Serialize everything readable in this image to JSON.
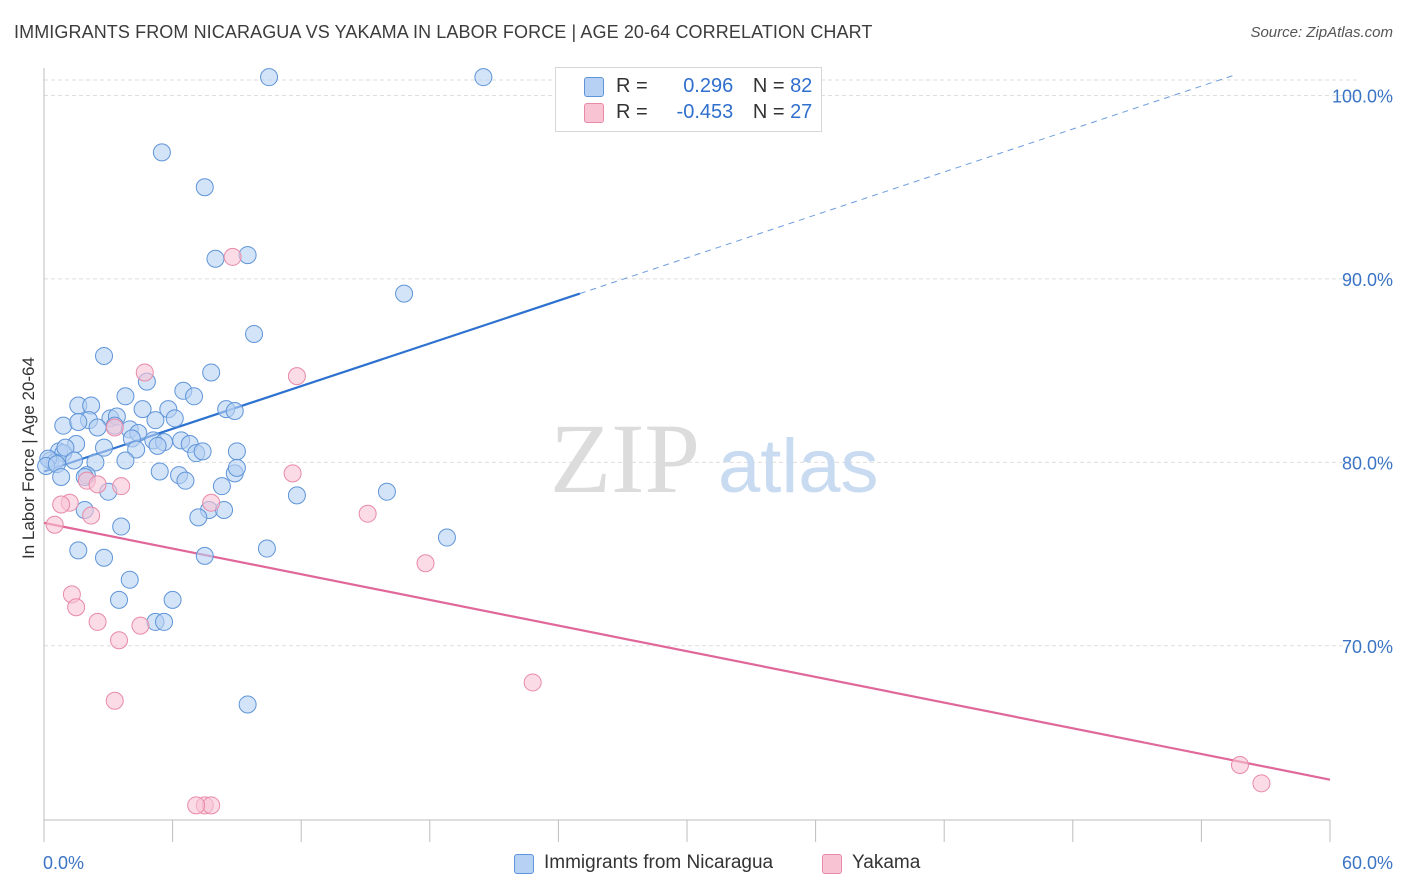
{
  "title": "IMMIGRANTS FROM NICARAGUA VS YAKAMA IN LABOR FORCE | AGE 20-64 CORRELATION CHART",
  "source": "Source: ZipAtlas.com",
  "watermark": {
    "zip": "ZIP",
    "atlas": "atlas"
  },
  "legend": {
    "series1": {
      "r_label": "R =",
      "r_value": "0.296",
      "n_label": "N =",
      "n_value": "82"
    },
    "series2": {
      "r_label": "R =",
      "r_value": "-0.453",
      "n_label": "N =",
      "n_value": "27"
    }
  },
  "colors": {
    "blue_fill": "#b6d1f3",
    "blue_stroke": "#5f95d8",
    "blue_line": "#2e72d0",
    "pink_fill": "#f8c3d3",
    "pink_stroke": "#e88aa8",
    "pink_line": "#e0679a",
    "tick_text": "#3b74c4",
    "grid": "#dedede"
  },
  "chart_data": {
    "type": "scatter",
    "title": "IMMIGRANTS FROM NICARAGUA VS YAKAMA IN LABOR FORCE | AGE 20-64 CORRELATION CHART",
    "xlabel": "",
    "ylabel": "In Labor Force | Age 20-64",
    "xlim": [
      0,
      60
    ],
    "ylim": [
      60.5,
      101.5
    ],
    "x_tick_labels": [
      "0.0%",
      "60.0%"
    ],
    "y_ticks": [
      70,
      80,
      90,
      100
    ],
    "y_tick_labels": [
      "70.0%",
      "80.0%",
      "90.0%",
      "100.0%"
    ],
    "grid": true,
    "legend_position": "top-center",
    "series": [
      {
        "name": "Immigrants from Nicaragua",
        "color": "#5f95d8",
        "points": [
          [
            10.5,
            101
          ],
          [
            20.5,
            101
          ],
          [
            5.5,
            96.9
          ],
          [
            7.5,
            95
          ],
          [
            8,
            91.1
          ],
          [
            9.5,
            91.3
          ],
          [
            16.8,
            89.2
          ],
          [
            9.8,
            87
          ],
          [
            2.8,
            85.8
          ],
          [
            7.8,
            84.9
          ],
          [
            4.8,
            84.4
          ],
          [
            6.5,
            83.9
          ],
          [
            3.8,
            83.6
          ],
          [
            7,
            83.6
          ],
          [
            1.6,
            83.1
          ],
          [
            2.2,
            83.1
          ],
          [
            4.6,
            82.9
          ],
          [
            5.8,
            82.9
          ],
          [
            3.1,
            82.4
          ],
          [
            3.4,
            82.5
          ],
          [
            5.2,
            82.3
          ],
          [
            2.1,
            82.3
          ],
          [
            0.9,
            82
          ],
          [
            1.6,
            82.2
          ],
          [
            3.3,
            82
          ],
          [
            2.5,
            81.9
          ],
          [
            8.5,
            82.9
          ],
          [
            8.9,
            82.8
          ],
          [
            6.1,
            82.4
          ],
          [
            4,
            81.8
          ],
          [
            4.4,
            81.6
          ],
          [
            4.1,
            81.3
          ],
          [
            5.1,
            81.2
          ],
          [
            5.6,
            81.1
          ],
          [
            6.4,
            81.2
          ],
          [
            1.5,
            81
          ],
          [
            2.8,
            80.8
          ],
          [
            4.3,
            80.7
          ],
          [
            5.3,
            80.9
          ],
          [
            6.8,
            81
          ],
          [
            0.7,
            80.6
          ],
          [
            0.9,
            80.5
          ],
          [
            1,
            80.8
          ],
          [
            0.3,
            80.1
          ],
          [
            0.5,
            80
          ],
          [
            0.2,
            80.2
          ],
          [
            0.1,
            79.8
          ],
          [
            0.6,
            79.9
          ],
          [
            1.4,
            80.1
          ],
          [
            2.4,
            80
          ],
          [
            7.1,
            80.5
          ],
          [
            7.4,
            80.6
          ],
          [
            9,
            80.6
          ],
          [
            3.8,
            80.1
          ],
          [
            2,
            79.3
          ],
          [
            0.8,
            79.2
          ],
          [
            1.9,
            79.2
          ],
          [
            5.4,
            79.5
          ],
          [
            6.3,
            79.3
          ],
          [
            8.9,
            79.4
          ],
          [
            9,
            79.7
          ],
          [
            6.6,
            79
          ],
          [
            8.3,
            78.7
          ],
          [
            3,
            78.4
          ],
          [
            1.9,
            77.4
          ],
          [
            7.7,
            77.4
          ],
          [
            16,
            78.4
          ],
          [
            11.8,
            78.2
          ],
          [
            8.4,
            77.4
          ],
          [
            7.2,
            77
          ],
          [
            3.6,
            76.5
          ],
          [
            10.4,
            75.3
          ],
          [
            18.8,
            75.9
          ],
          [
            1.6,
            75.2
          ],
          [
            2.8,
            74.8
          ],
          [
            7.5,
            74.9
          ],
          [
            4,
            73.6
          ],
          [
            3.5,
            72.5
          ],
          [
            6,
            72.5
          ],
          [
            5.2,
            71.3
          ],
          [
            5.6,
            71.3
          ],
          [
            9.5,
            66.8
          ]
        ]
      },
      {
        "name": "Yakama",
        "color": "#e88aa8",
        "points": [
          [
            8.8,
            91.2
          ],
          [
            4.7,
            84.9
          ],
          [
            11.8,
            84.7
          ],
          [
            3.3,
            81.9
          ],
          [
            11.6,
            79.4
          ],
          [
            2,
            79
          ],
          [
            2.5,
            78.8
          ],
          [
            3.6,
            78.7
          ],
          [
            1.2,
            77.8
          ],
          [
            7.8,
            77.8
          ],
          [
            15.1,
            77.2
          ],
          [
            0.8,
            77.7
          ],
          [
            2.2,
            77.1
          ],
          [
            0.5,
            76.6
          ],
          [
            17.8,
            74.5
          ],
          [
            1.3,
            72.8
          ],
          [
            1.5,
            72.1
          ],
          [
            2.5,
            71.3
          ],
          [
            4.5,
            71.1
          ],
          [
            3.5,
            70.3
          ],
          [
            22.8,
            68
          ],
          [
            3.3,
            67
          ],
          [
            55.8,
            63.5
          ],
          [
            56.8,
            62.5
          ],
          [
            7.5,
            61.3
          ],
          [
            7.8,
            61.3
          ],
          [
            7.1,
            61.3
          ]
        ]
      }
    ],
    "trend_lines": [
      {
        "series": "Immigrants from Nicaragua",
        "solid": [
          [
            0,
            79.5
          ],
          [
            25,
            89.2
          ]
        ],
        "dashed": [
          [
            25,
            89.2
          ],
          [
            55.5,
            101.1
          ]
        ]
      },
      {
        "series": "Yakama",
        "solid": [
          [
            0,
            76.7
          ],
          [
            60,
            62.7
          ]
        ]
      }
    ]
  }
}
